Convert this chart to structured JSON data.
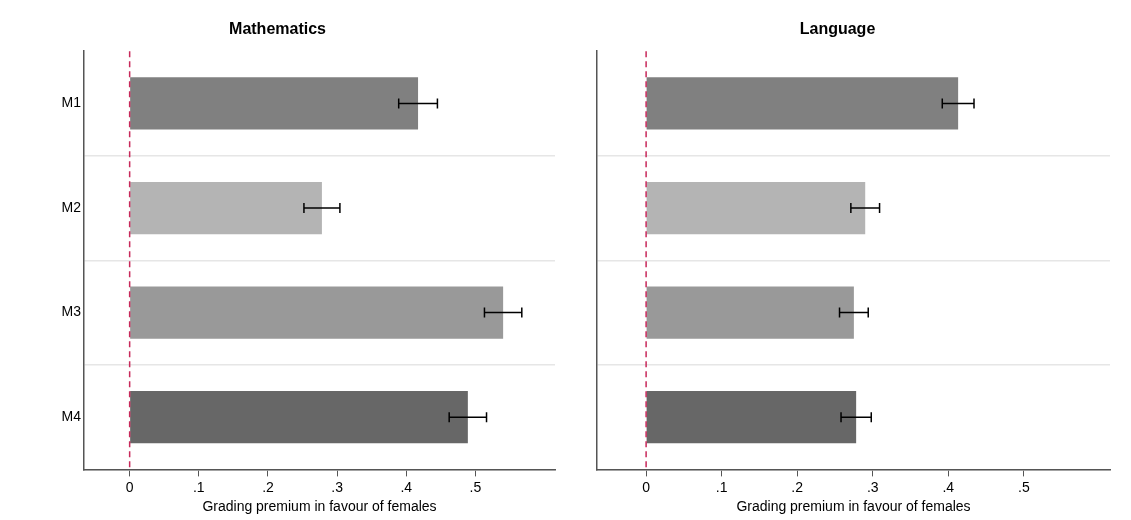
{
  "chart_data": [
    {
      "type": "bar",
      "orientation": "horizontal",
      "title": "Mathematics",
      "xlabel": "Grading premium in favour of females",
      "categories": [
        "M1",
        "M2",
        "M3",
        "M4"
      ],
      "values": [
        0.417,
        0.278,
        0.54,
        0.489
      ],
      "errors": [
        0.028,
        0.026,
        0.027,
        0.027
      ],
      "colors": [
        "#808080",
        "#b4b4b4",
        "#999999",
        "#676767"
      ],
      "xlim": [
        -0.066,
        0.615
      ],
      "xticks": [
        0,
        {
          "value": 0.1,
          "label": ".1"
        },
        {
          "value": 0.2,
          "label": ".2"
        },
        {
          "value": 0.3,
          "label": ".3"
        },
        {
          "value": 0.4,
          "label": ".4"
        },
        {
          "value": 0.5,
          "label": ".5"
        }
      ],
      "grid": "y",
      "legend": false,
      "ref_lines": [
        {
          "axis": "x",
          "value": 0,
          "color": "#c8285a",
          "line_style": "dashed"
        }
      ]
    },
    {
      "type": "bar",
      "orientation": "horizontal",
      "title": "Language",
      "xlabel": "Grading premium in favour of females",
      "categories": [
        null,
        null,
        null,
        null
      ],
      "values": [
        0.413,
        0.29,
        0.275,
        0.278
      ],
      "errors": [
        0.021,
        0.019,
        0.019,
        0.02
      ],
      "colors": [
        "#808080",
        "#b4b4b4",
        "#999999",
        "#676767"
      ],
      "xlim": [
        -0.065,
        0.614
      ],
      "xticks": [
        0,
        {
          "value": 0.1,
          "label": ".1"
        },
        {
          "value": 0.2,
          "label": ".2"
        },
        {
          "value": 0.3,
          "label": ".3"
        },
        {
          "value": 0.4,
          "label": ".4"
        },
        {
          "value": 0.5,
          "label": ".5"
        }
      ],
      "grid": "y",
      "legend": false,
      "tick_labels": "x",
      "ref_lines": [
        {
          "axis": "x",
          "value": 0,
          "color": "#c8285a",
          "line_style": "dashed"
        }
      ]
    }
  ]
}
